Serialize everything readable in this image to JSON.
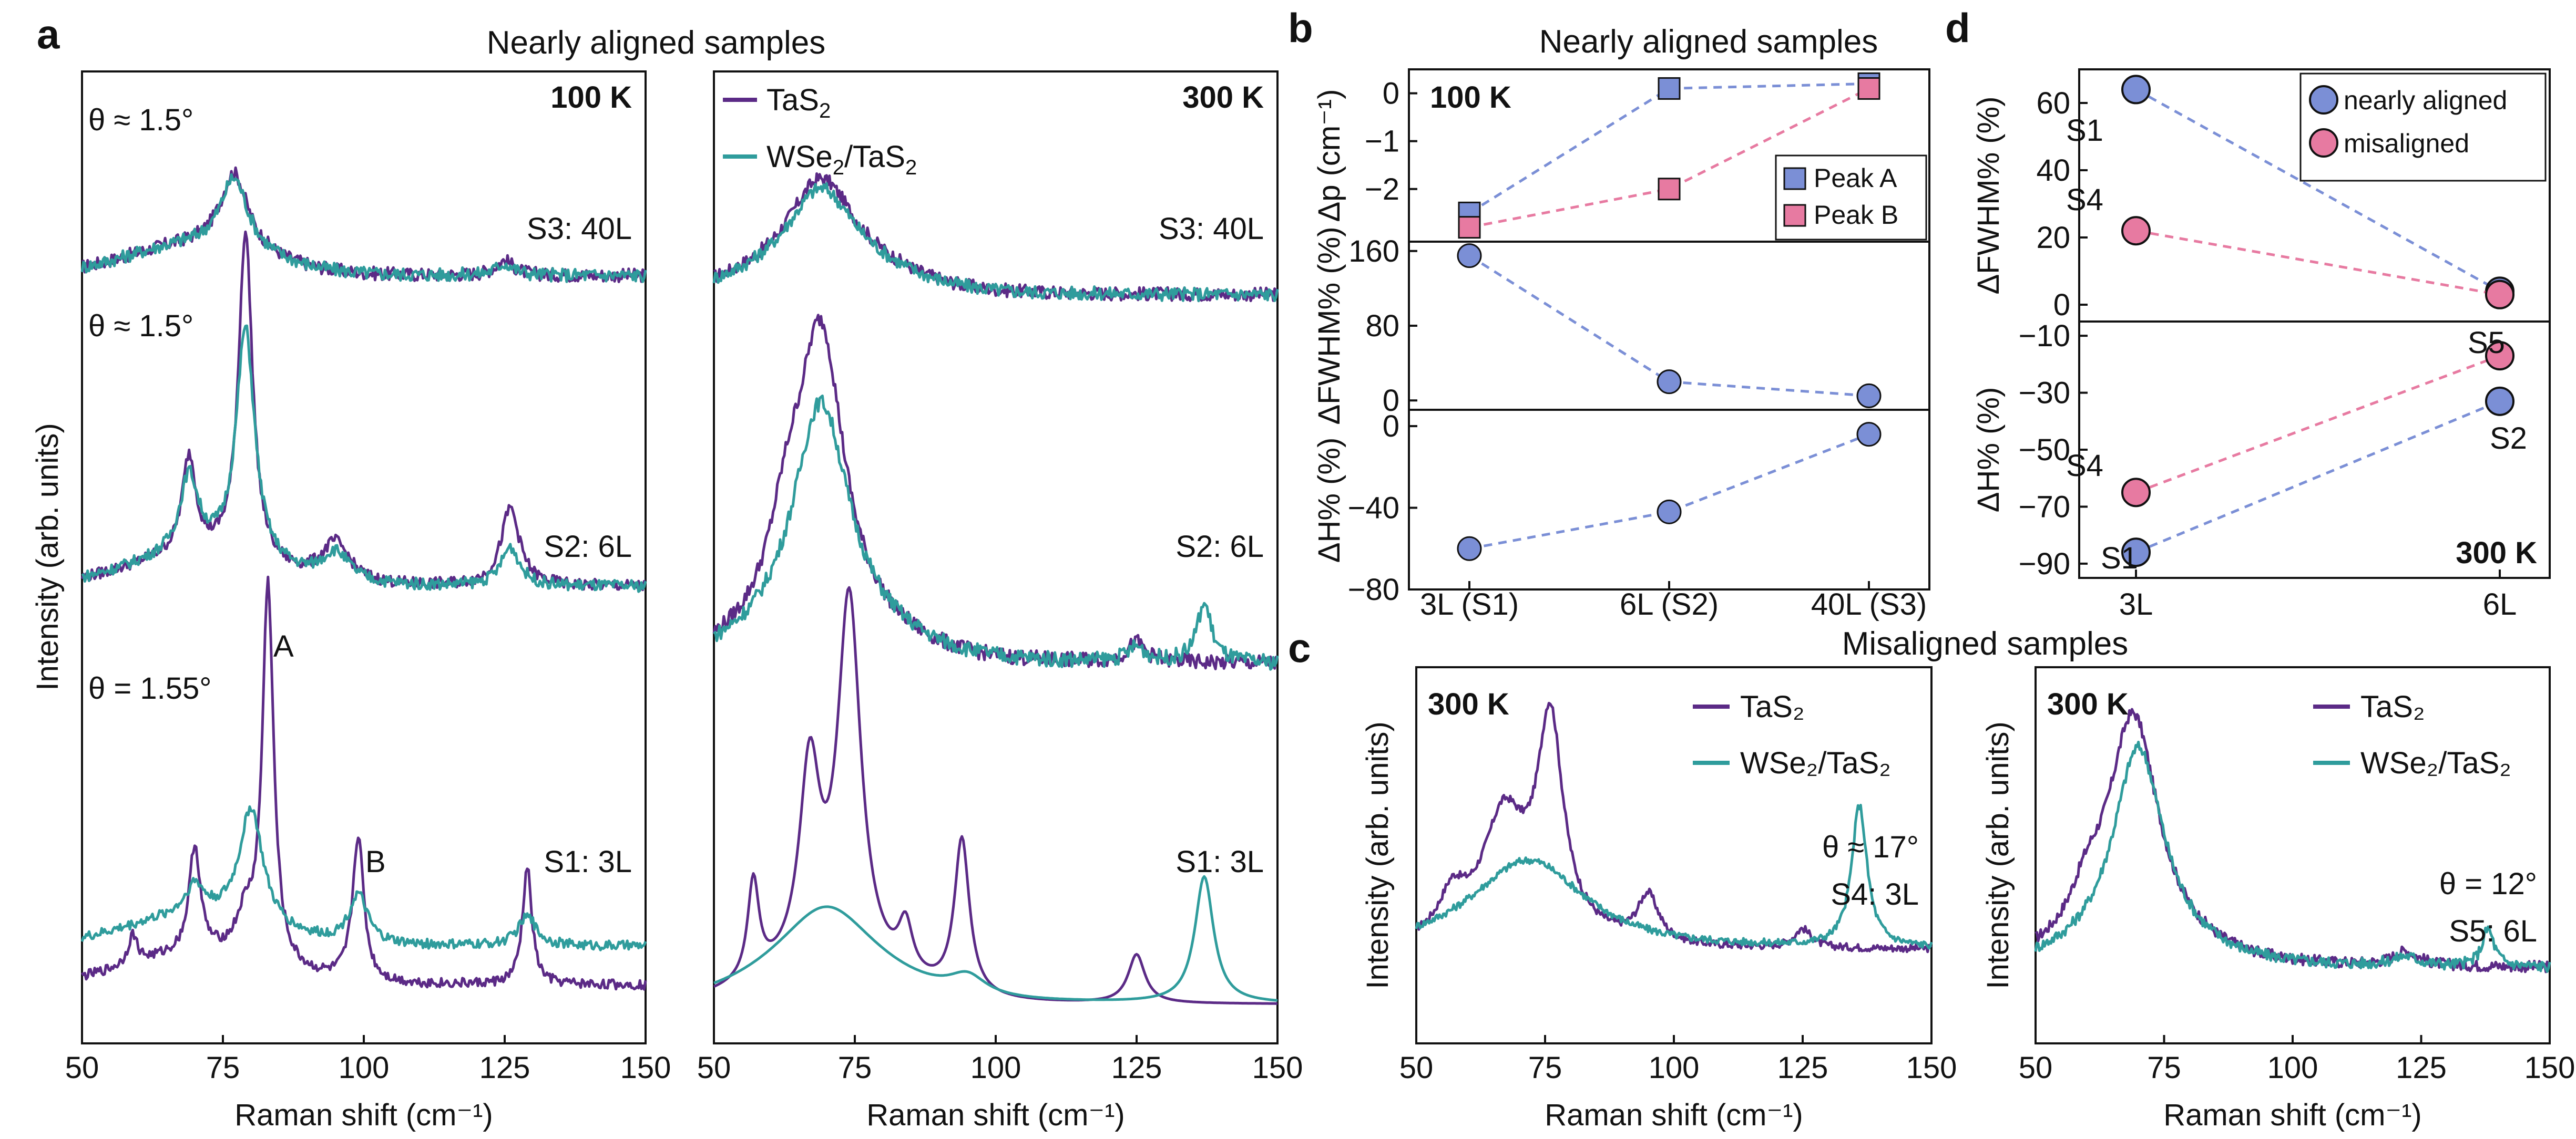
{
  "panel_letters": {
    "a": "a",
    "b": "b",
    "c": "c",
    "d": "d"
  },
  "section_titles": {
    "a": "Nearly aligned samples",
    "b": "Nearly aligned samples",
    "c": "Misaligned samples"
  },
  "colors": {
    "tas2": "#5b2a86",
    "wse2": "#2f9c9c",
    "peakA": "#7b8fd6",
    "peakB": "#e77aa1",
    "dashA": "#7b8fd6",
    "dashB": "#e77aa1"
  },
  "chart_data": [
    {
      "id": "a-100K",
      "type": "line",
      "title": "100 K",
      "xlabel": "Raman shift (cm⁻¹)",
      "ylabel": "Intensity (arb. units)",
      "xlim": [
        50,
        150
      ],
      "xticks": [
        50,
        75,
        100,
        125,
        150
      ],
      "ylim": [
        0,
        100
      ],
      "annotations": {
        "theta_top": "θ ≈ 1.5°",
        "theta_mid": "θ ≈ 1.5°",
        "theta_bot": "θ = 1.55°",
        "peakA": "A",
        "peakB": "B",
        "s3": "S3: 40L",
        "s2": "S2: 6L",
        "s1": "S1: 3L"
      },
      "series": [
        {
          "name": "TaS2 S3",
          "color": "#5b2a86",
          "offset": 79,
          "peaks": [
            [
              77,
              8,
              3
            ],
            [
              125,
              1.5,
              2
            ]
          ],
          "base": 0,
          "noise": 0.7
        },
        {
          "name": "WSe2/TaS2 S3",
          "color": "#2f9c9c",
          "offset": 79,
          "peaks": [
            [
              77,
              7.5,
              3
            ],
            [
              125,
              1.2,
              2
            ]
          ],
          "base": 0,
          "noise": 0.7
        },
        {
          "name": "TaS2 S2",
          "color": "#5b2a86",
          "offset": 42,
          "peaks": [
            [
              79,
              34,
              1.5
            ],
            [
              69,
              10,
              1.5
            ],
            [
              95,
              4,
              3
            ],
            [
              126,
              8,
              2
            ]
          ],
          "base": 5,
          "noise": 0.6
        },
        {
          "name": "WSe2/TaS2 S2",
          "color": "#2f9c9c",
          "offset": 42,
          "peaks": [
            [
              79,
              24,
              2
            ],
            [
              69,
              8,
              2
            ],
            [
              95,
              3,
              3
            ],
            [
              126,
              4,
              2
            ]
          ],
          "base": 5,
          "noise": 0.6
        },
        {
          "name": "TaS2 S1",
          "color": "#5b2a86",
          "offset": 6,
          "peaks": [
            [
              83,
              39,
              1.2
            ],
            [
              70,
              11,
              1.2
            ],
            [
              99,
              15,
              1.2
            ],
            [
              129,
              12,
              1.0
            ],
            [
              59,
              3,
              1
            ],
            [
              79,
              4,
              2
            ]
          ],
          "base": 0,
          "noise": 0.5
        },
        {
          "name": "WSe2/TaS2 S1",
          "color": "#2f9c9c",
          "offset": 6,
          "peaks": [
            [
              80,
              12,
              2.5
            ],
            [
              70,
              3,
              2
            ],
            [
              99,
              5,
              2
            ],
            [
              129,
              3,
              2
            ]
          ],
          "base": 4,
          "noise": 0.5
        }
      ]
    },
    {
      "id": "a-300K",
      "type": "line",
      "title": "300 K",
      "xlabel": "Raman shift (cm⁻¹)",
      "xlim": [
        50,
        150
      ],
      "xticks": [
        50,
        75,
        100,
        125,
        150
      ],
      "ylim": [
        0,
        100
      ],
      "legend": [
        "TaS₂",
        "WSe₂/TaS₂"
      ],
      "legend_parts": {
        "tas2_main": "TaS",
        "tas2_sub": "2",
        "wse2_a": "WSe",
        "wse2_sub1": "2",
        "wse2_b": "/TaS",
        "wse2_sub2": "2"
      },
      "annotations": {
        "s3": "S3: 40L",
        "s2": "S2: 6L",
        "s1": "S1: 3L"
      },
      "series": [
        {
          "name": "TaS2 S3",
          "color": "#5b2a86",
          "offset": 77,
          "peaks": [
            [
              69,
              9,
              7
            ]
          ],
          "base": 0,
          "noise": 0.7
        },
        {
          "name": "WSe2/TaS2 S3",
          "color": "#2f9c9c",
          "offset": 77,
          "peaks": [
            [
              69,
              8,
              7
            ]
          ],
          "base": 0,
          "noise": 0.7
        },
        {
          "name": "TaS2 S2",
          "color": "#5b2a86",
          "offset": 36,
          "peaks": [
            [
              69,
              30,
              5
            ],
            [
              63,
              8,
              4
            ],
            [
              125,
              2,
              2
            ]
          ],
          "base": 3,
          "noise": 0.8
        },
        {
          "name": "WSe2/TaS2 S2",
          "color": "#2f9c9c",
          "offset": 36,
          "peaks": [
            [
              69,
              24,
              6
            ],
            [
              137,
              6,
              1.6
            ],
            [
              125,
              1.5,
              2
            ]
          ],
          "base": 3,
          "noise": 0.8
        },
        {
          "name": "TaS2 S1",
          "color": "#5b2a86",
          "offset": 4,
          "peaks": [
            [
              74,
              38,
              2.5
            ],
            [
              67,
              20,
              2.2
            ],
            [
              57,
              10,
              1.2
            ],
            [
              94,
              16,
              1.6
            ],
            [
              84,
              5,
              1.5
            ],
            [
              125,
              5,
              1.8
            ]
          ],
          "base": 0,
          "noise": 0
        },
        {
          "name": "WSe2/TaS2 S1",
          "color": "#2f9c9c",
          "offset": 4,
          "peaks": [
            [
              70,
              7,
              10
            ],
            [
              137,
              13,
              2
            ],
            [
              95,
              2,
              4
            ]
          ],
          "base": 0,
          "noise": 0
        }
      ]
    },
    {
      "id": "b-dp",
      "type": "scatter",
      "title": "100 K",
      "ylabel": "Δp (cm⁻¹)",
      "categories": [
        "3L (S1)",
        "6L (S2)",
        "40L (S3)"
      ],
      "ylim": [
        -3.1,
        0.5
      ],
      "yticks": [
        0,
        -1,
        -2
      ],
      "ytick_labels": [
        "0",
        "−1",
        "−2"
      ],
      "legend": [
        "Peak A",
        "Peak B"
      ],
      "series": [
        {
          "name": "Peak A",
          "values": [
            -2.5,
            0.1,
            0.2
          ]
        },
        {
          "name": "Peak B",
          "values": [
            -2.8,
            -2.0,
            0.1
          ]
        }
      ]
    },
    {
      "id": "b-fwhm",
      "type": "scatter",
      "ylabel": "ΔFWHM% (%)",
      "categories": [
        "3L (S1)",
        "6L (S2)",
        "40L (S3)"
      ],
      "ylim": [
        -10,
        170
      ],
      "yticks": [
        0,
        80,
        160
      ],
      "series": [
        {
          "name": "FWHM",
          "values": [
            155,
            20,
            5
          ]
        }
      ]
    },
    {
      "id": "b-h",
      "type": "scatter",
      "ylabel": "ΔH% (%)",
      "xlabel_ticks": [
        "3L (S1)",
        "6L (S2)",
        "40L (S3)"
      ],
      "categories": [
        "3L (S1)",
        "6L (S2)",
        "40L (S3)"
      ],
      "ylim": [
        -80,
        8
      ],
      "yticks": [
        0,
        -40,
        -80
      ],
      "ytick_labels": [
        "0",
        "−40",
        "−80"
      ],
      "series": [
        {
          "name": "H",
          "values": [
            -60,
            -42,
            -4
          ]
        }
      ]
    },
    {
      "id": "c-left",
      "type": "line",
      "title": "300 K",
      "xlabel": "Raman shift (cm⁻¹)",
      "ylabel": "Intensity (arb. units)",
      "xlim": [
        50,
        150
      ],
      "xticks": [
        50,
        75,
        100,
        125,
        150
      ],
      "legend": [
        "TaS₂",
        "WSe₂/TaS₂"
      ],
      "annotations": {
        "theta": "θ ≈ 17°",
        "sample": "S4: 3L"
      },
      "series": [
        {
          "name": "TaS2",
          "color": "#5b2a86",
          "offset": 12,
          "peaks": [
            [
              76,
              44,
              3
            ],
            [
              67,
              24,
              5
            ],
            [
              57,
              8,
              3
            ],
            [
              95,
              10,
              2.5
            ],
            [
              125,
              4,
              2
            ]
          ],
          "base": 8,
          "noise": 0.8
        },
        {
          "name": "WSe2/TaS2",
          "color": "#2f9c9c",
          "offset": 12,
          "peaks": [
            [
              72,
              16,
              13
            ],
            [
              136,
              30,
              1.8
            ]
          ],
          "base": 8,
          "noise": 0.8
        }
      ]
    },
    {
      "id": "c-right",
      "type": "line",
      "title": "300 K",
      "xlabel": "Raman shift (cm⁻¹)",
      "ylabel": "Intensity (arb. units)",
      "xlim": [
        50,
        150
      ],
      "xticks": [
        50,
        75,
        100,
        125,
        150
      ],
      "legend": [
        "TaS₂",
        "WSe₂/TaS₂"
      ],
      "annotations": {
        "theta": "θ = 12°",
        "sample": "S5: 6L"
      },
      "series": [
        {
          "name": "TaS2",
          "color": "#5b2a86",
          "offset": 10,
          "peaks": [
            [
              69,
              50,
              6
            ],
            [
              60,
              8,
              4
            ],
            [
              122,
              3,
              3
            ]
          ],
          "base": 6,
          "noise": 1.2
        },
        {
          "name": "WSe2/TaS2",
          "color": "#2f9c9c",
          "offset": 10,
          "peaks": [
            [
              70,
              44,
              6
            ],
            [
              138,
              8,
              1.4
            ],
            [
              122,
              2,
              3
            ]
          ],
          "base": 6,
          "noise": 1.2
        }
      ]
    },
    {
      "id": "d-top",
      "type": "scatter",
      "ylabel": "ΔFWHM% (%)",
      "categories": [
        "3L",
        "6L"
      ],
      "ylim": [
        -5,
        70
      ],
      "yticks": [
        0,
        20,
        40,
        60
      ],
      "legend": [
        "nearly aligned",
        "misaligned"
      ],
      "labels": {
        "s1": "S1",
        "s4": "S4"
      },
      "series": [
        {
          "name": "nearly aligned",
          "values": [
            64,
            4
          ]
        },
        {
          "name": "misaligned",
          "values": [
            22,
            3
          ]
        }
      ]
    },
    {
      "id": "d-bottom",
      "type": "scatter",
      "title": "300 K",
      "ylabel": "ΔH% (%)",
      "categories": [
        "3L",
        "6L"
      ],
      "ylim": [
        -95,
        -5
      ],
      "yticks": [
        -10,
        -30,
        -50,
        -70,
        -90
      ],
      "ytick_labels": [
        "−10",
        "−30",
        "−50",
        "−70",
        "−90"
      ],
      "labels": {
        "s4": "S4",
        "s1": "S1",
        "s5": "S5",
        "s2": "S2"
      },
      "series": [
        {
          "name": "nearly aligned",
          "values": [
            -86,
            -33
          ]
        },
        {
          "name": "misaligned",
          "values": [
            -65,
            -17
          ]
        }
      ]
    }
  ]
}
